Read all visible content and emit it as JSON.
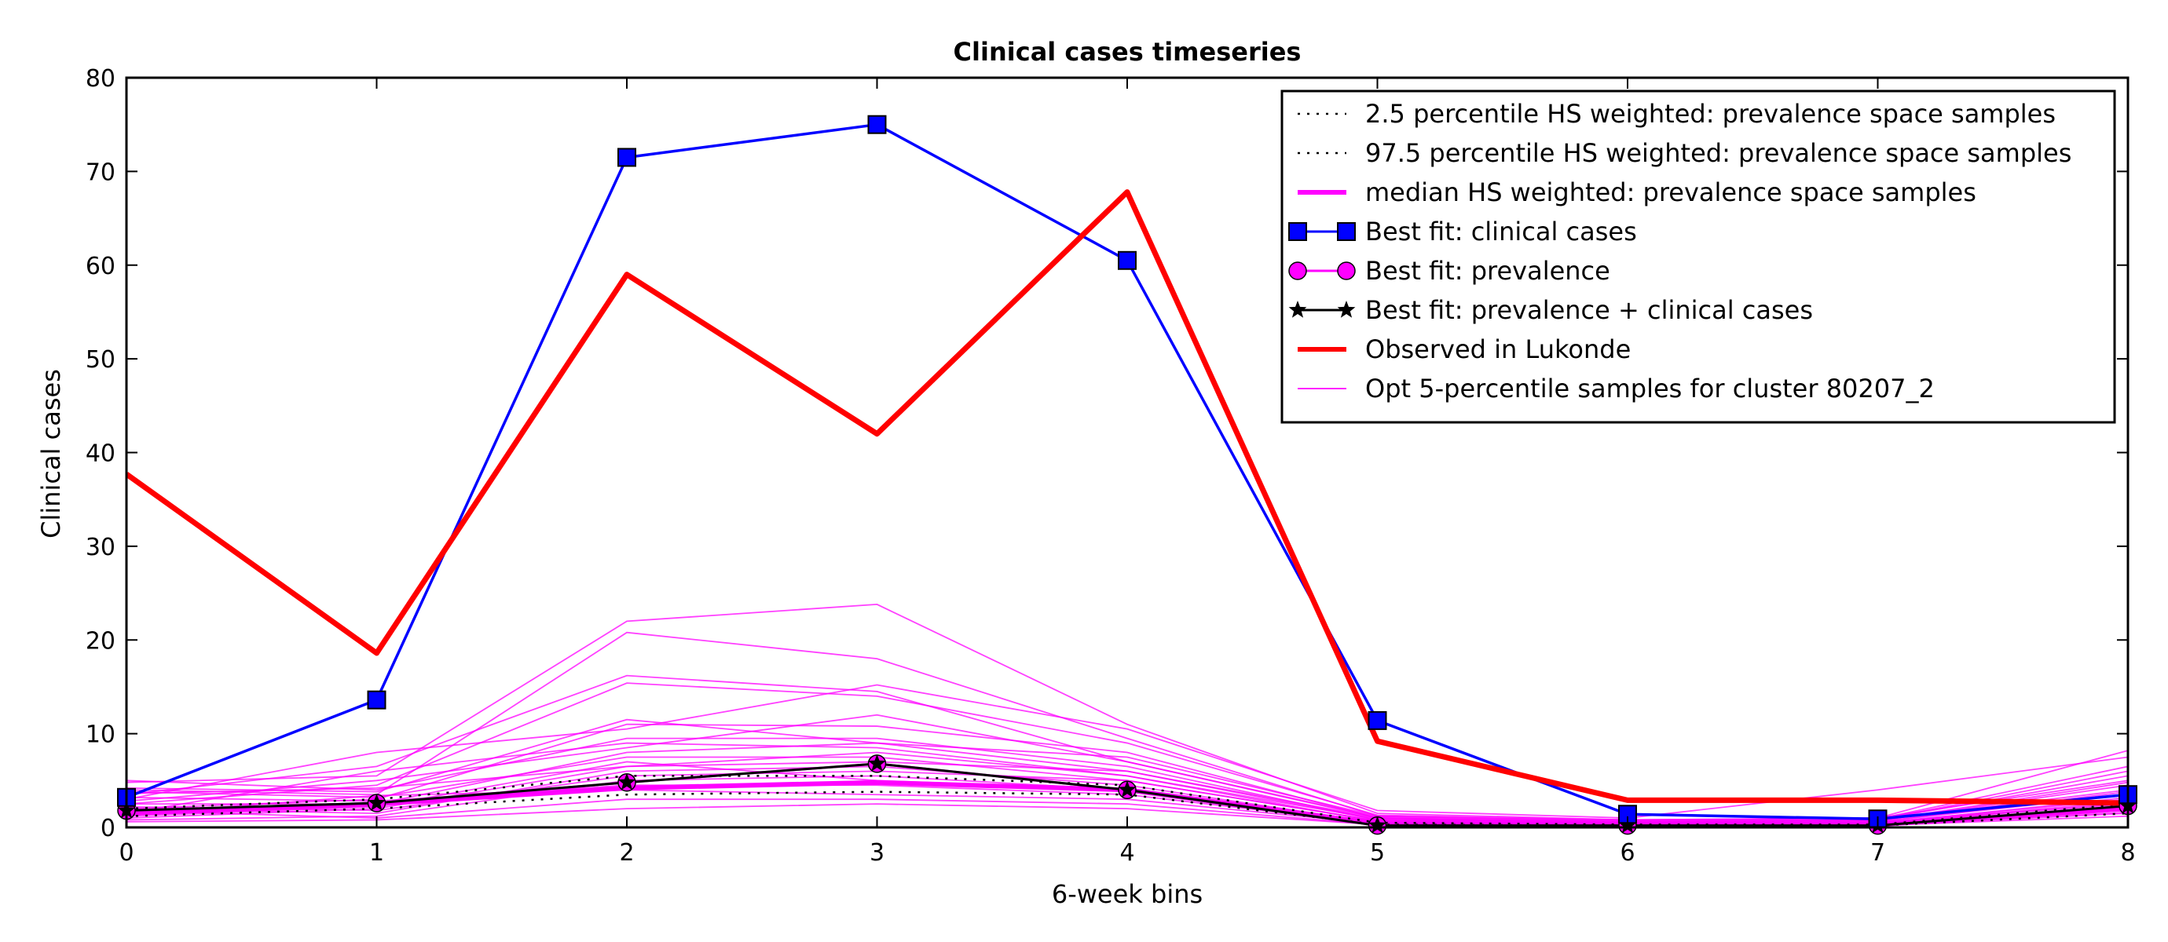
{
  "chart_data": {
    "type": "line",
    "title": "Clinical cases timeseries",
    "xlabel": "6-week bins",
    "ylabel": "Clinical cases",
    "xlim": [
      0,
      8
    ],
    "ylim": [
      0,
      80
    ],
    "x_ticks": [
      0,
      1,
      2,
      3,
      4,
      5,
      6,
      7,
      8
    ],
    "y_ticks": [
      0,
      10,
      20,
      30,
      40,
      50,
      60,
      70,
      80
    ],
    "grid": false,
    "legend_position": "top-right",
    "x": [
      0,
      1,
      2,
      3,
      4,
      5,
      6,
      7,
      8
    ],
    "samples": {
      "name": "Opt 5-percentile samples for cluster 80207_2",
      "color": "#ff00ff",
      "lines": [
        [
          4.8,
          5.5,
          22.0,
          23.8,
          11.0,
          1.5,
          0.8,
          1.0,
          8.2
        ],
        [
          4.0,
          3.5,
          20.8,
          18.0,
          9.5,
          1.2,
          0.7,
          0.9,
          6.5
        ],
        [
          3.5,
          6.5,
          16.2,
          14.5,
          7.0,
          1.0,
          0.6,
          0.8,
          5.5
        ],
        [
          2.5,
          4.5,
          15.4,
          14.0,
          9.0,
          1.3,
          0.8,
          1.0,
          5.0
        ],
        [
          3.0,
          8.0,
          10.5,
          15.2,
          10.5,
          1.8,
          1.0,
          4.0,
          7.5
        ],
        [
          2.0,
          3.0,
          11.0,
          10.8,
          8.0,
          1.0,
          0.5,
          0.7,
          4.5
        ],
        [
          5.0,
          4.0,
          9.5,
          9.5,
          6.5,
          0.8,
          0.6,
          0.8,
          4.0
        ],
        [
          1.5,
          6.0,
          9.0,
          8.5,
          5.5,
          0.9,
          0.5,
          0.6,
          3.5
        ],
        [
          2.5,
          2.5,
          8.0,
          9.0,
          6.0,
          1.0,
          0.4,
          0.5,
          3.0
        ],
        [
          3.8,
          3.2,
          7.5,
          7.5,
          5.0,
          0.7,
          0.4,
          0.5,
          2.5
        ],
        [
          1.0,
          2.0,
          6.5,
          8.0,
          5.5,
          0.6,
          0.3,
          0.4,
          2.0
        ],
        [
          2.0,
          1.5,
          6.0,
          6.5,
          4.5,
          0.5,
          0.3,
          0.4,
          3.2
        ],
        [
          0.8,
          1.2,
          5.0,
          5.5,
          4.0,
          0.5,
          0.3,
          0.3,
          1.8
        ],
        [
          3.2,
          2.8,
          4.5,
          4.5,
          3.5,
          0.4,
          0.2,
          0.3,
          2.2
        ],
        [
          1.8,
          1.0,
          3.0,
          3.0,
          2.5,
          0.3,
          0.2,
          0.2,
          1.5
        ],
        [
          0.6,
          0.8,
          2.0,
          2.5,
          2.0,
          0.3,
          0.2,
          0.2,
          1.2
        ],
        [
          4.2,
          3.8,
          11.5,
          9.0,
          7.5,
          1.2,
          0.7,
          0.8,
          6.0
        ],
        [
          2.8,
          5.0,
          8.5,
          12.0,
          7.0,
          1.1,
          0.6,
          0.7,
          4.8
        ],
        [
          1.2,
          2.2,
          7.0,
          5.0,
          4.0,
          0.6,
          0.3,
          0.4,
          2.8
        ],
        [
          3.6,
          4.2,
          6.5,
          7.0,
          6.0,
          0.8,
          0.5,
          0.6,
          3.8
        ],
        [
          2.2,
          1.8,
          5.5,
          6.0,
          5.0,
          0.7,
          0.4,
          0.5,
          2.6
        ],
        [
          1.4,
          3.4,
          4.0,
          3.5,
          3.0,
          0.4,
          0.2,
          0.3,
          1.6
        ]
      ]
    },
    "series": [
      {
        "name": "2.5 percentile HS weighted: prevalence space samples",
        "color": "#000000",
        "style": "dotted",
        "values": [
          1.2,
          2.0,
          3.5,
          3.8,
          3.5,
          0.3,
          0.2,
          0.2,
          1.5
        ]
      },
      {
        "name": "97.5 percentile HS weighted: prevalence space samples",
        "color": "#000000",
        "style": "dotted",
        "values": [
          2.0,
          3.0,
          5.5,
          5.5,
          4.5,
          0.5,
          0.3,
          0.3,
          2.5
        ]
      },
      {
        "name": "median HS weighted: prevalence space samples",
        "color": "#ff00ff",
        "style": "thick",
        "values": [
          1.5,
          2.5,
          4.2,
          4.8,
          4.0,
          0.4,
          0.3,
          0.3,
          2.0
        ]
      },
      {
        "name": "Best fit: clinical cases",
        "color": "#0000ff",
        "marker": "square",
        "values": [
          3.2,
          13.6,
          71.5,
          75.0,
          60.5,
          11.4,
          1.4,
          0.9,
          3.5
        ]
      },
      {
        "name": "Best fit: prevalence",
        "color": "#ff00ff",
        "marker": "circle",
        "values": [
          1.8,
          2.6,
          4.8,
          6.8,
          4.0,
          0.2,
          0.2,
          0.2,
          2.3
        ]
      },
      {
        "name": "Best fit: prevalence + clinical cases",
        "color": "#000000",
        "marker": "star",
        "values": [
          1.8,
          2.6,
          4.8,
          6.8,
          4.0,
          0.2,
          0.2,
          0.2,
          2.3
        ]
      },
      {
        "name": "Observed in Lukonde",
        "color": "#ff0000",
        "style": "thick",
        "values": [
          37.7,
          18.6,
          59.0,
          42.0,
          67.8,
          9.2,
          2.9,
          2.9,
          2.6
        ]
      }
    ]
  }
}
